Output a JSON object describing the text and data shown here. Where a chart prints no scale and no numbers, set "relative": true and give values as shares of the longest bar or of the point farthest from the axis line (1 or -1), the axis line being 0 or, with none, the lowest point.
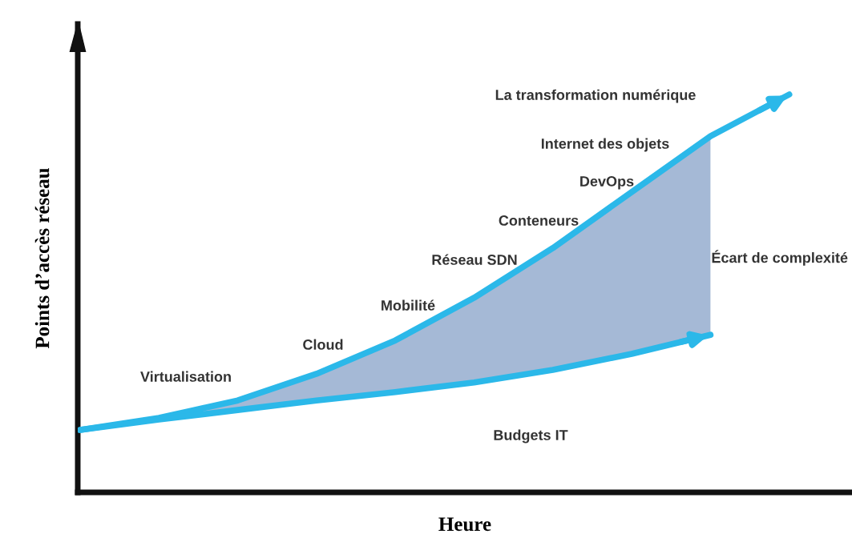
{
  "chart_data": {
    "type": "line",
    "relative": true,
    "xlabel": "Heure",
    "ylabel": "Points d’accès réseau",
    "categories": [
      null,
      null,
      null,
      null,
      null,
      null,
      null,
      null,
      null,
      null
    ],
    "series": [
      {
        "color": "#2bb8e9",
        "values": [
          0.157,
          0.187,
          0.231,
          0.298,
          0.382,
          0.489,
          0.614,
          0.755,
          0.895,
          1.0
        ]
      },
      {
        "name": "Budgets IT",
        "color": "#2bb8e9",
        "values": [
          0.157,
          0.183,
          0.207,
          0.231,
          0.252,
          0.276,
          0.308,
          0.348,
          0.396,
          null
        ],
        "lower": [
          0.157,
          0.183,
          0.207,
          0.231,
          0.252,
          0.276,
          0.308,
          0.348,
          0.396,
          null
        ],
        "upper": [
          0.157,
          0.187,
          0.231,
          0.298,
          0.382,
          0.489,
          0.614,
          0.755,
          0.895,
          null
        ]
      }
    ],
    "annotations": [
      "La transformation numérique",
      "Internet des objets",
      "DevOps",
      "Conteneurs",
      "Réseau SDN",
      "Mobilité",
      "Cloud",
      "Virtualisation",
      "Écart de complexité"
    ],
    "legend": false,
    "marker": "none",
    "line_style": "solid",
    "tick_labels": false
  }
}
